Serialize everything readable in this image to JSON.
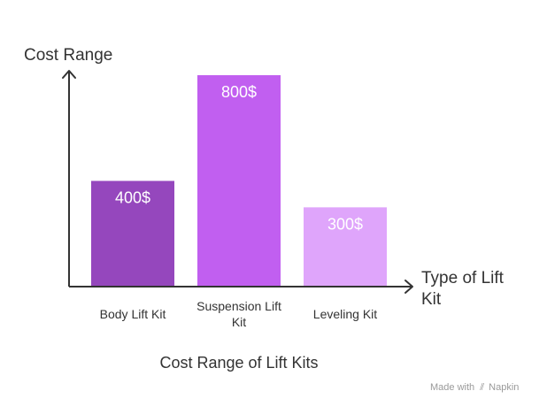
{
  "chart_data": {
    "type": "bar",
    "title": "Cost Range of Lift Kits",
    "ylabel": "Cost Range",
    "xlabel": "Type of Lift Kit",
    "categories": [
      "Body Lift Kit",
      "Suspension Lift Kit",
      "Leveling Kit"
    ],
    "values": [
      400,
      800,
      300
    ],
    "value_labels": [
      "400$",
      "800$",
      "300$"
    ],
    "colors": [
      "#9547bd",
      "#c15ff0",
      "#dfa5fb"
    ],
    "ylim": [
      0,
      800
    ],
    "grid": false,
    "legend": "none"
  },
  "watermark": {
    "prefix": "Made with",
    "brand": "Napkin"
  }
}
